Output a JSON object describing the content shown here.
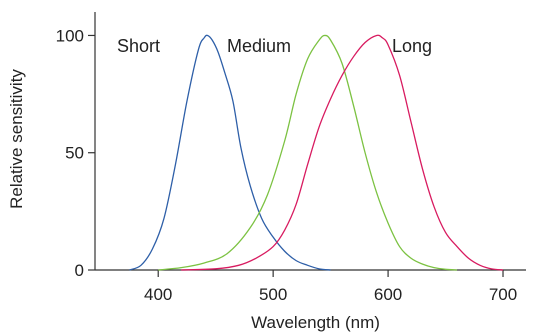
{
  "chart_data": {
    "type": "line",
    "title": "",
    "xlabel": "Wavelength (nm)",
    "ylabel": "Relative sensitivity",
    "xlim": [
      345,
      720
    ],
    "ylim": [
      0,
      110
    ],
    "xticks": [
      400,
      500,
      600,
      700
    ],
    "yticks": [
      0,
      50,
      100
    ],
    "grid": false,
    "legend": "inline",
    "series": [
      {
        "name": "Short",
        "color": "#2e5fa8",
        "x": [
          375,
          385,
          395,
          405,
          415,
          425,
          435,
          440,
          443,
          447,
          452,
          458,
          465,
          472,
          480,
          490,
          500,
          510,
          520,
          530,
          540,
          550
        ],
        "y": [
          0,
          2,
          9,
          22,
          45,
          72,
          94,
          99,
          100,
          98,
          93,
          84,
          72,
          52,
          36,
          22,
          14,
          8,
          4,
          2,
          0.5,
          0
        ]
      },
      {
        "name": "Medium",
        "color": "#7cc242",
        "x": [
          400,
          420,
          440,
          460,
          480,
          495,
          510,
          520,
          530,
          540,
          545,
          550,
          560,
          570,
          580,
          590,
          600,
          610,
          620,
          630,
          640,
          650,
          660
        ],
        "y": [
          0,
          1,
          3,
          7,
          18,
          32,
          55,
          75,
          90,
          98,
          100,
          98,
          88,
          70,
          50,
          33,
          20,
          10,
          5,
          2.5,
          1,
          0.3,
          0
        ]
      },
      {
        "name": "Long",
        "color": "#d81b60",
        "x": [
          420,
          450,
          470,
          485,
          500,
          510,
          520,
          530,
          540,
          550,
          560,
          570,
          580,
          590,
          595,
          600,
          610,
          620,
          630,
          640,
          650,
          660,
          670,
          680,
          690,
          700
        ],
        "y": [
          0,
          0.5,
          2,
          5,
          10,
          17,
          28,
          45,
          61,
          73,
          83,
          91,
          97,
          100,
          99,
          96,
          83,
          63,
          43,
          27,
          16,
          10,
          5,
          2,
          0.5,
          0
        ]
      }
    ]
  }
}
